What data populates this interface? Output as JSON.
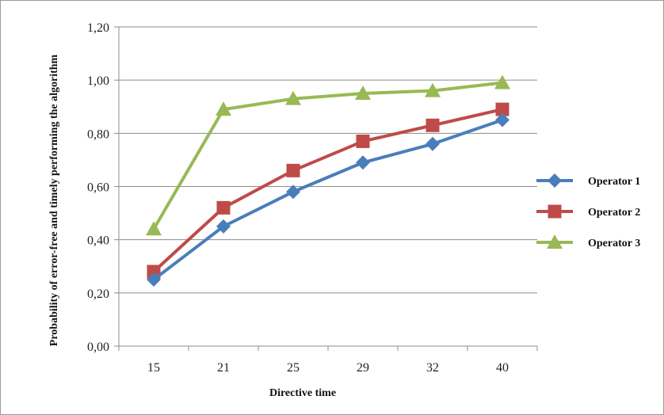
{
  "chart_data": {
    "type": "line",
    "xlabel": "Directive time",
    "ylabel": "Probability of error-free and timely performing the algorithm",
    "categories": [
      "15",
      "21",
      "25",
      "29",
      "32",
      "40"
    ],
    "ylim": [
      0,
      1.2
    ],
    "yticks": [
      "0,00",
      "0,20",
      "0,40",
      "0,60",
      "0,80",
      "1,00",
      "1,20"
    ],
    "grid": "horizontal",
    "legend_position": "right",
    "series": [
      {
        "name": "Operator 1",
        "color": "#4a7ebb",
        "marker": "diamond",
        "values": [
          0.25,
          0.45,
          0.58,
          0.69,
          0.76,
          0.85
        ]
      },
      {
        "name": "Operator 2",
        "color": "#be4b48",
        "marker": "square",
        "values": [
          0.28,
          0.52,
          0.66,
          0.77,
          0.83,
          0.89
        ]
      },
      {
        "name": "Operator 3",
        "color": "#98b954",
        "marker": "triangle",
        "values": [
          0.44,
          0.89,
          0.93,
          0.95,
          0.96,
          0.99
        ]
      }
    ]
  }
}
